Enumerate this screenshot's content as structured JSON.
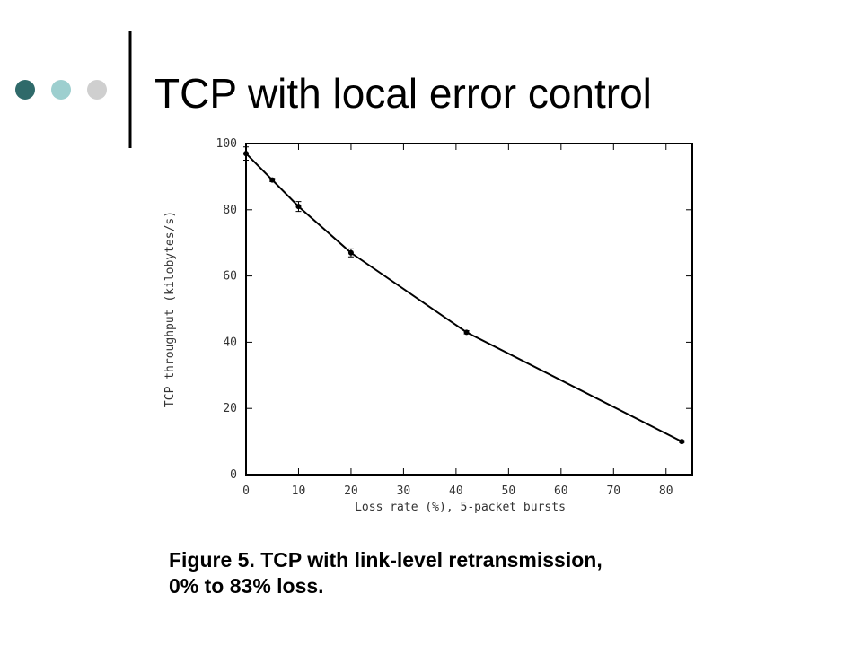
{
  "slide": {
    "title": "TCP with local error control"
  },
  "chart_data": {
    "type": "line",
    "x_label": "Loss rate (%), 5-packet bursts",
    "y_label": "TCP throughput (kilobytes/s)",
    "x": [
      0,
      5,
      10,
      20,
      42,
      83
    ],
    "series": [
      {
        "values": [
          97,
          89,
          81,
          67,
          43,
          10
        ],
        "errors": [
          2,
          0.5,
          1.5,
          1.2,
          0.5,
          0.3
        ],
        "color": "#000000"
      }
    ],
    "xlim": [
      0,
      85
    ],
    "xticks": [
      0,
      10,
      20,
      30,
      40,
      50,
      60,
      70,
      80
    ],
    "ylim": [
      0,
      100
    ],
    "yticks": [
      0,
      20,
      40,
      60,
      80,
      100
    ],
    "caption": [
      "Figure 5. TCP with link-level retransmission,",
      "0% to 83% loss."
    ]
  }
}
